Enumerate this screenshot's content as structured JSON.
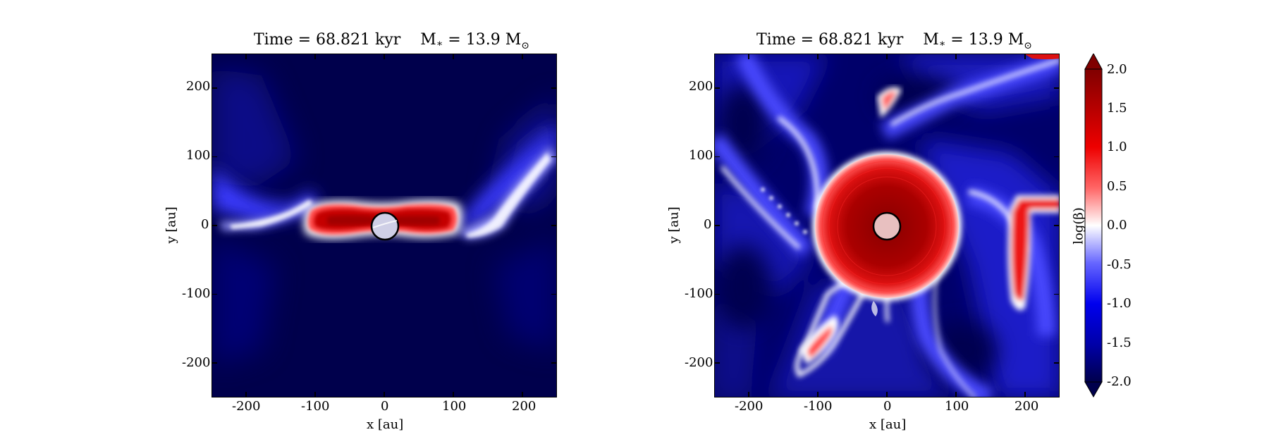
{
  "chart_data": [
    {
      "type": "heatmap",
      "title_parts": {
        "time": "Time = 68.821 kyr",
        "mass_prefix": "M",
        "mass_sub": "∗",
        "mass_value": " = 13.9 M",
        "mass_sup": "⊙"
      },
      "xlabel": "x [au]",
      "ylabel": "y [au]",
      "xlim": [
        -250,
        250
      ],
      "ylim": [
        -250,
        250
      ],
      "xticks": [
        -200,
        -100,
        0,
        100,
        200
      ],
      "yticks": [
        200,
        100,
        0,
        -100,
        -200
      ],
      "xtick_labels": [
        "-200",
        "-100",
        "0",
        "100",
        "200"
      ],
      "ytick_labels": [
        "200",
        "100",
        "0",
        "-100",
        "-200"
      ],
      "features": "edge-on disk: high log(beta) red band along y=0 from x≈-110 to x≈110, white boundary layers, blue outflow cavities, central sink circle radius ≈20 au"
    },
    {
      "type": "heatmap",
      "title_parts": {
        "time": "Time = 68.821 kyr",
        "mass_prefix": "M",
        "mass_sub": "∗",
        "mass_value": " = 13.9 M",
        "mass_sup": "⊙"
      },
      "xlabel": "x [au]",
      "ylabel": "y [au]",
      "xlim": [
        -250,
        250
      ],
      "ylim": [
        -250,
        250
      ],
      "xticks": [
        -200,
        -100,
        0,
        100,
        200
      ],
      "yticks": [
        200,
        100,
        0,
        -100,
        -200
      ],
      "xtick_labels": [
        "-200",
        "-100",
        "0",
        "100",
        "200"
      ],
      "ytick_labels": [
        "200",
        "100",
        "0",
        "-100",
        "-200"
      ],
      "features": "face-on disk: red disk of radius ≈110 au, spiral filaments in white/blue, central sink circle radius ≈20 au"
    }
  ],
  "colorbar": {
    "label": "log(β)",
    "vmin": -2.0,
    "vmax": 2.0,
    "ticks": [
      "2.0",
      "1.5",
      "1.0",
      "0.5",
      "0.0",
      "-0.5",
      "-1.0",
      "-1.5",
      "-2.0"
    ],
    "colormap": "seismic",
    "colors": {
      "low": "#00004c",
      "mid": "#ffffff",
      "high": "#800000"
    }
  }
}
